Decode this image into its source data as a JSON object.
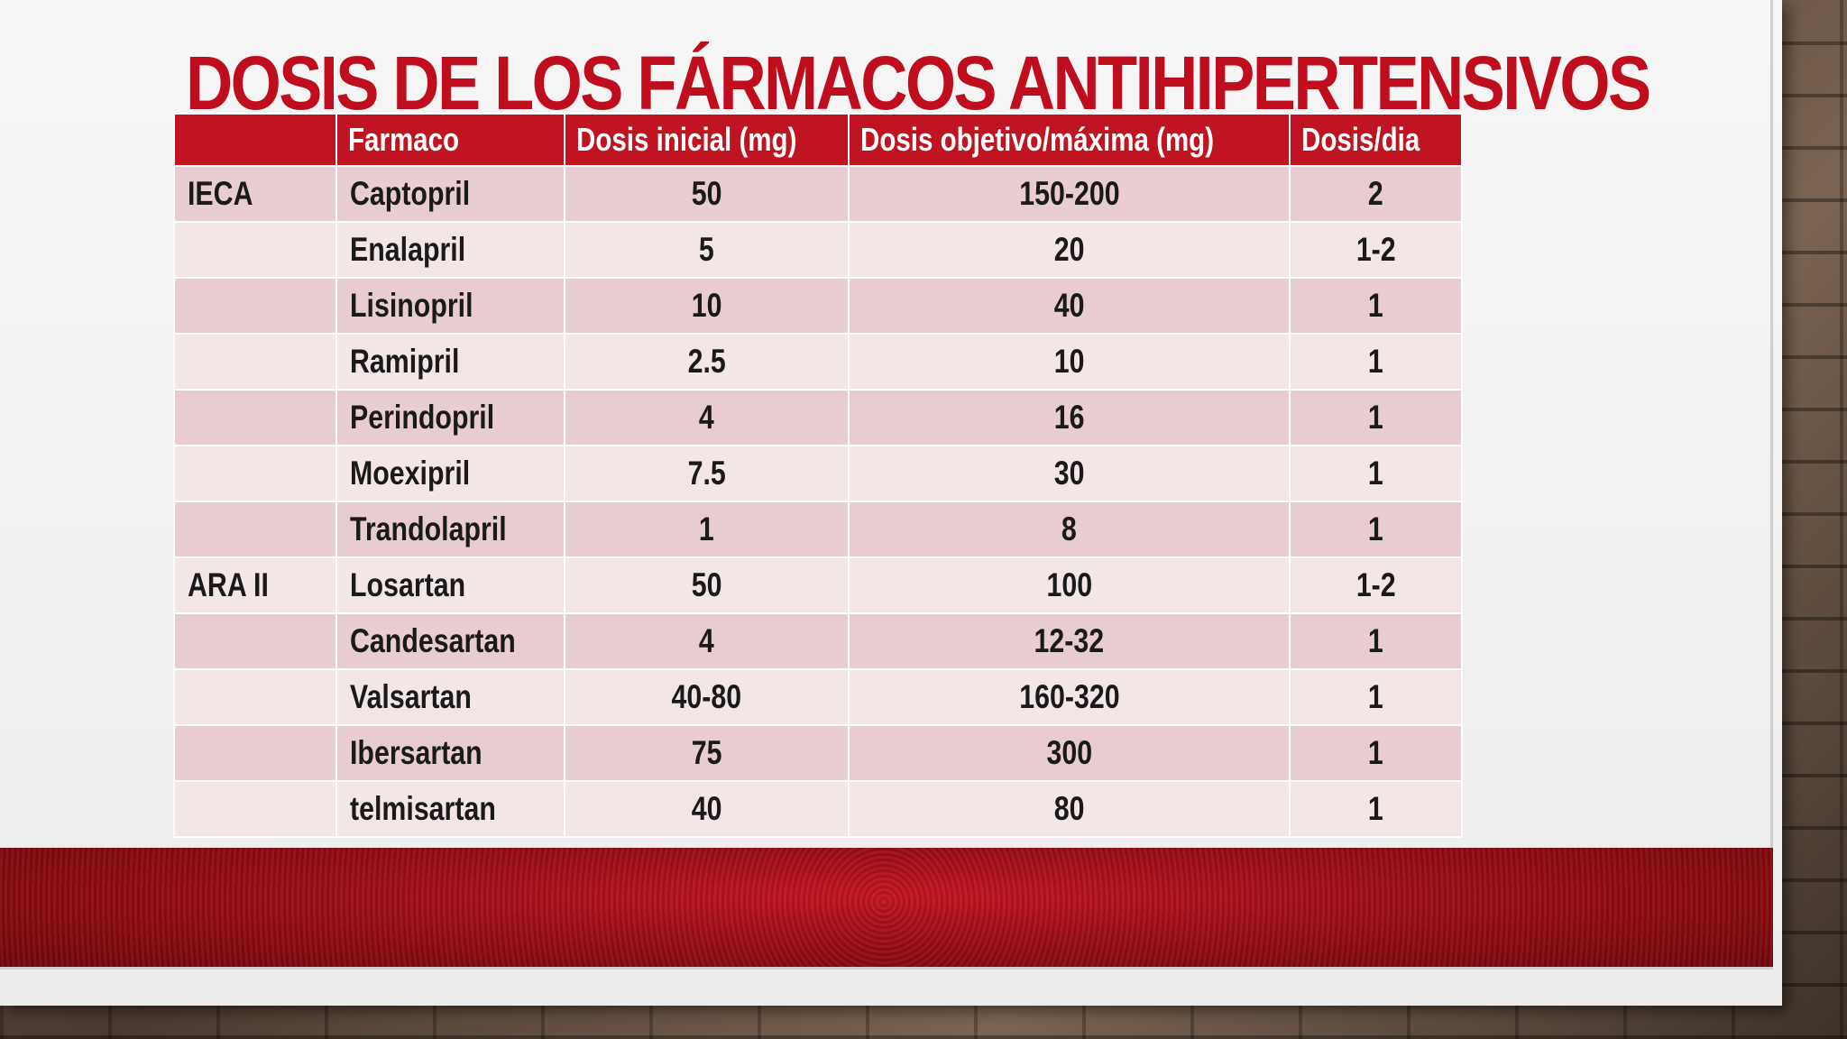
{
  "slide": {
    "title": "Dosis de los fármacos antihipertensivos"
  },
  "table": {
    "headers": [
      "",
      "Farmaco",
      "Dosis inicial (mg)",
      "Dosis objetivo/máxima (mg)",
      "Dosis/dia"
    ],
    "rows": [
      {
        "group": "IECA",
        "drug": "Captopril",
        "initial": "50",
        "target": "150-200",
        "per_day": "2"
      },
      {
        "group": "",
        "drug": "Enalapril",
        "initial": "5",
        "target": "20",
        "per_day": "1-2"
      },
      {
        "group": "",
        "drug": "Lisinopril",
        "initial": "10",
        "target": "40",
        "per_day": "1"
      },
      {
        "group": "",
        "drug": "Ramipril",
        "initial": "2.5",
        "target": "10",
        "per_day": "1"
      },
      {
        "group": "",
        "drug": "Perindopril",
        "initial": "4",
        "target": "16",
        "per_day": "1"
      },
      {
        "group": "",
        "drug": "Moexipril",
        "initial": "7.5",
        "target": "30",
        "per_day": "1"
      },
      {
        "group": "",
        "drug": "Trandolapril",
        "initial": "1",
        "target": "8",
        "per_day": "1"
      },
      {
        "group": "ARA II",
        "drug": "Losartan",
        "initial": "50",
        "target": "100",
        "per_day": "1-2"
      },
      {
        "group": "",
        "drug": "Candesartan",
        "initial": "4",
        "target": "12-32",
        "per_day": "1"
      },
      {
        "group": "",
        "drug": "Valsartan",
        "initial": "40-80",
        "target": "160-320",
        "per_day": "1"
      },
      {
        "group": "",
        "drug": "Ibersartan",
        "initial": "75",
        "target": "300",
        "per_day": "1"
      },
      {
        "group": "",
        "drug": "telmisartan",
        "initial": "40",
        "target": "80",
        "per_day": "1"
      }
    ]
  },
  "colors": {
    "accent": "#c00d1e",
    "header_bg": "#c01420",
    "row_odd": "#e8cdd0",
    "row_even": "#f3e6e7"
  }
}
